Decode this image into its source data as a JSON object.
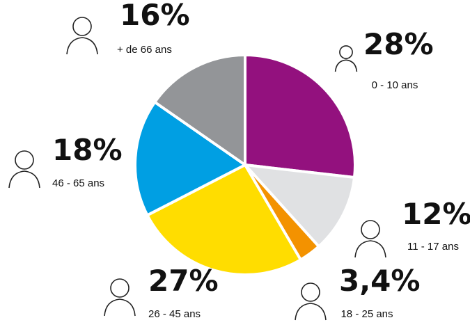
{
  "chart_data": {
    "type": "pie",
    "categories": [
      "0 - 10 ans",
      "11 - 17 ans",
      "18 - 25 ans",
      "26 - 45 ans",
      "46 - 65 ans",
      "+ de 66 ans"
    ],
    "values": [
      28,
      12,
      3.4,
      27,
      18,
      16
    ],
    "value_labels": [
      "28%",
      "12%",
      "3,4%",
      "27%",
      "18%",
      "16%"
    ],
    "colors": [
      "#93117e",
      "#e0e1e3",
      "#f39200",
      "#ffdd00",
      "#009fe3",
      "#939598"
    ]
  }
}
